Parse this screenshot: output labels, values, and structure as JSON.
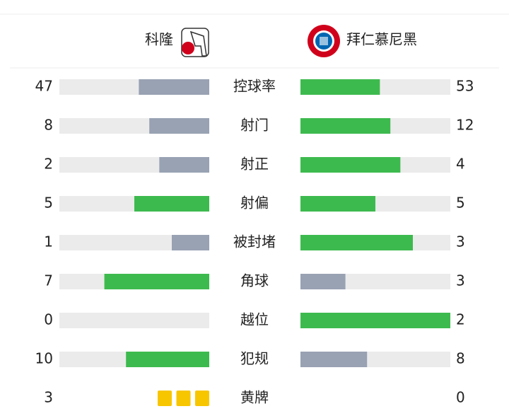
{
  "teams": {
    "home": "科隆",
    "away": "拜仁慕尼黑"
  },
  "bar_colors": {
    "leading": "#3dba4e",
    "trailing": "#98a2b3",
    "track": "#ebebeb",
    "card": "#f7c600"
  },
  "stats": [
    {
      "label": "控球率",
      "home": 47,
      "away": 53
    },
    {
      "label": "射门",
      "home": 8,
      "away": 12
    },
    {
      "label": "射正",
      "home": 2,
      "away": 4
    },
    {
      "label": "射偏",
      "home": 5,
      "away": 5
    },
    {
      "label": "被封堵",
      "home": 1,
      "away": 3
    },
    {
      "label": "角球",
      "home": 7,
      "away": 3
    },
    {
      "label": "越位",
      "home": 0,
      "away": 2
    },
    {
      "label": "犯规",
      "home": 10,
      "away": 8
    },
    {
      "label": "黄牌",
      "home": 3,
      "away": 0,
      "kind": "cards"
    }
  ]
}
